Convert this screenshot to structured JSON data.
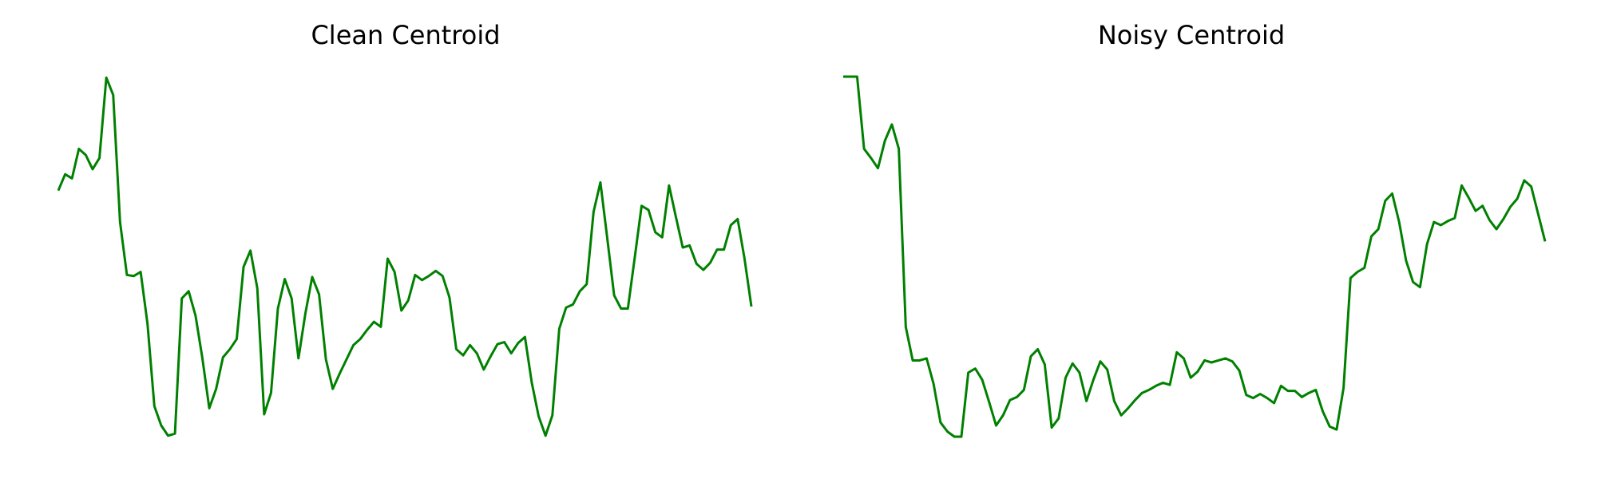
{
  "chart_data": [
    {
      "type": "line",
      "title": "Clean Centroid",
      "color": "#008000",
      "ylim": [
        0,
        354
      ],
      "values": [
        242,
        258,
        254,
        283,
        277,
        263,
        274,
        353,
        336,
        211,
        159,
        158,
        162,
        111,
        30,
        11,
        1,
        3,
        136,
        143,
        119,
        77,
        28,
        47,
        78,
        86,
        96,
        167,
        183,
        146,
        22,
        43,
        126,
        155,
        136,
        77,
        121,
        157,
        140,
        76,
        47,
        62,
        76,
        90,
        96,
        105,
        113,
        108,
        175,
        162,
        124,
        134,
        159,
        154,
        158,
        163,
        158,
        137,
        86,
        80,
        90,
        82,
        66,
        79,
        91,
        93,
        82,
        92,
        98,
        53,
        20,
        1,
        21,
        106,
        127,
        130,
        143,
        150,
        221,
        250,
        195,
        139,
        126,
        126,
        176,
        227,
        223,
        201,
        196,
        247,
        216,
        186,
        188,
        170,
        164,
        171,
        184,
        184,
        208,
        214,
        175,
        128
      ]
    },
    {
      "type": "line",
      "title": "Noisy Centroid",
      "color": "#008000",
      "ylim": [
        0,
        354
      ],
      "values": [
        354,
        354,
        354,
        283,
        274,
        264,
        291,
        307,
        283,
        108,
        75,
        75,
        77,
        52,
        14,
        5,
        0,
        0,
        63,
        67,
        56,
        34,
        11,
        21,
        36,
        39,
        46,
        79,
        86,
        71,
        9,
        18,
        58,
        72,
        63,
        35,
        56,
        74,
        66,
        35,
        21,
        28,
        36,
        43,
        46,
        50,
        53,
        51,
        83,
        77,
        58,
        64,
        75,
        73,
        75,
        77,
        74,
        65,
        41,
        38,
        42,
        38,
        33,
        50,
        45,
        45,
        39,
        43,
        46,
        25,
        10,
        7,
        48,
        156,
        162,
        166,
        197,
        204,
        232,
        239,
        211,
        173,
        152,
        147,
        189,
        211,
        208,
        212,
        215,
        247,
        235,
        222,
        227,
        213,
        204,
        214,
        226,
        234,
        252,
        246,
        219,
        192
      ]
    }
  ]
}
